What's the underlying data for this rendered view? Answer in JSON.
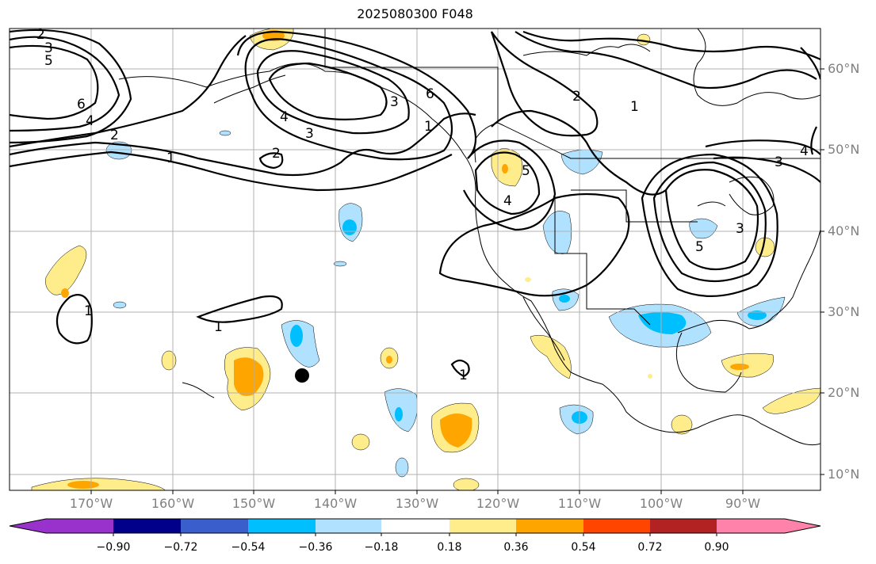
{
  "title": "2025080300 F048",
  "lat_labels": [
    "60°N",
    "50°N",
    "40°N",
    "30°N",
    "20°N",
    "10°N"
  ],
  "lon_labels": [
    "170°W",
    "160°W",
    "150°W",
    "140°W",
    "130°W",
    "120°W",
    "110°W",
    "100°W",
    "90°W"
  ],
  "colorbar": {
    "colors": [
      "#9932cc",
      "#00008b",
      "#3a5fcd",
      "#00bfff",
      "#b0e2ff",
      "#ffffff",
      "#ffec8b",
      "#ffa500",
      "#ff4500",
      "#b22222",
      "#ff82ab"
    ],
    "tick_labels": [
      "−0.90",
      "−0.72",
      "−0.54",
      "−0.36",
      "−0.18",
      "0.18",
      "0.36",
      "0.54",
      "0.72",
      "0.90"
    ]
  },
  "contour_labels": [
    "2",
    "3",
    "5",
    "6",
    "4",
    "2",
    "1",
    "4",
    "3",
    "2",
    "6",
    "2",
    "1",
    "5",
    "4",
    "3",
    "4",
    "3",
    "5",
    "1",
    "1",
    "1",
    "3",
    "1"
  ],
  "marker": "black-dot"
}
